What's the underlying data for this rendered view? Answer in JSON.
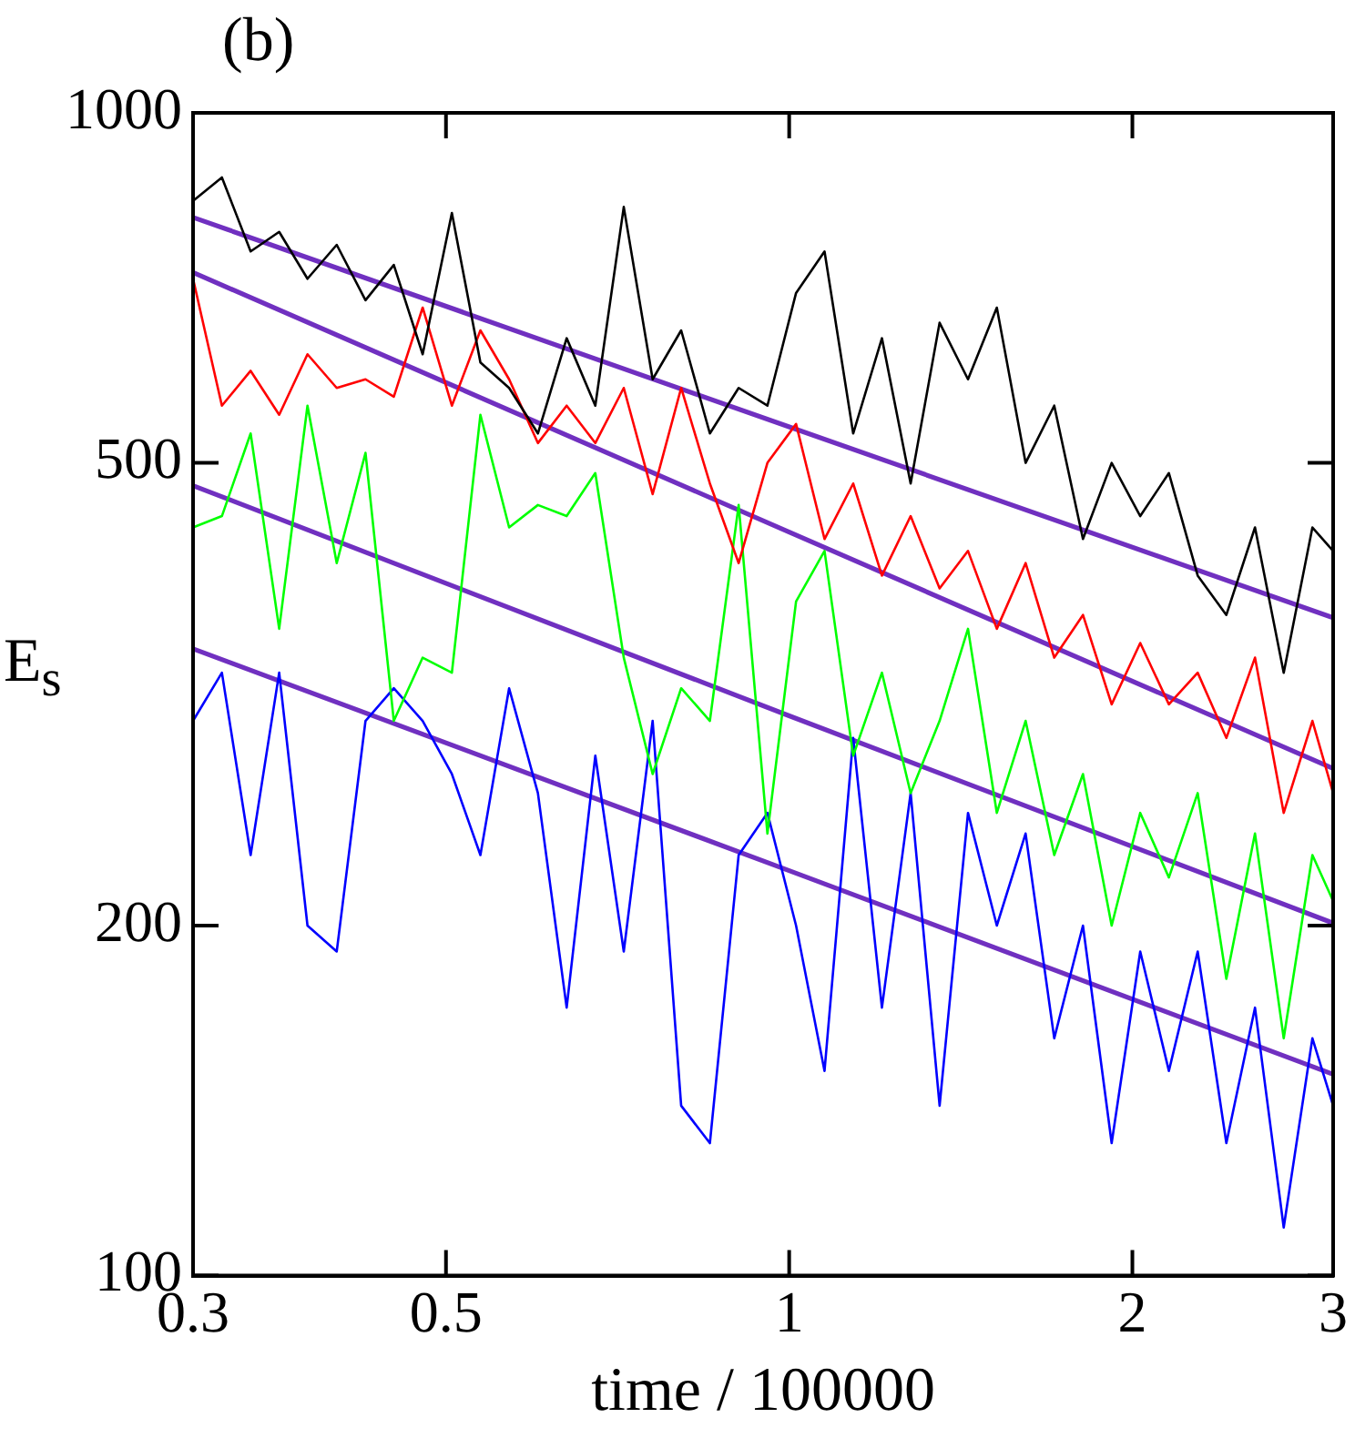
{
  "chart_data": {
    "type": "line",
    "title": "(b)",
    "xlabel": "time / 100000",
    "ylabel": "E$_{s}$",
    "log": "xy",
    "grid": false,
    "legend": false,
    "marker": "none",
    "line_style": "solid",
    "xlim": [
      0.3,
      3
    ],
    "ylim": [
      100,
      1000
    ],
    "xticks": [
      0.3,
      0.5,
      1,
      2,
      3
    ],
    "yticks": [
      100,
      200,
      500,
      1000
    ],
    "x": [
      0.3,
      0.318,
      0.337,
      0.357,
      0.378,
      0.401,
      0.425,
      0.45,
      0.477,
      0.506,
      0.536,
      0.568,
      0.602,
      0.638,
      0.676,
      0.716,
      0.759,
      0.804,
      0.852,
      0.903,
      0.957,
      1.014,
      1.074,
      1.138,
      1.206,
      1.278,
      1.355,
      1.435,
      1.521,
      1.612,
      1.708,
      1.81,
      1.918,
      2.032,
      2.153,
      2.282,
      2.418,
      2.562,
      2.715,
      2.877,
      3.0
    ],
    "series": [
      {
        "color": "#000000",
        "values": [
          840,
          880,
          760,
          790,
          720,
          770,
          690,
          740,
          620,
          820,
          610,
          580,
          530,
          640,
          560,
          830,
          590,
          650,
          530,
          580,
          560,
          700,
          760,
          530,
          640,
          480,
          660,
          590,
          680,
          500,
          560,
          430,
          500,
          450,
          490,
          400,
          370,
          440,
          330,
          440,
          420
        ]
      },
      {
        "color": "#ff0000",
        "values": [
          720,
          560,
          600,
          550,
          620,
          580,
          590,
          570,
          680,
          560,
          650,
          590,
          520,
          560,
          520,
          580,
          470,
          580,
          480,
          410,
          500,
          540,
          430,
          480,
          400,
          450,
          390,
          420,
          360,
          410,
          340,
          370,
          310,
          350,
          310,
          330,
          290,
          340,
          250,
          300,
          260
        ]
      },
      {
        "color": "#00ff00",
        "values": [
          440,
          450,
          530,
          360,
          560,
          410,
          510,
          300,
          340,
          330,
          550,
          440,
          460,
          450,
          490,
          340,
          270,
          320,
          300,
          460,
          240,
          380,
          420,
          280,
          330,
          260,
          300,
          360,
          250,
          300,
          230,
          270,
          200,
          250,
          220,
          260,
          180,
          240,
          160,
          230,
          210
        ]
      },
      {
        "color": "#0000ff",
        "values": [
          300,
          330,
          230,
          330,
          200,
          190,
          300,
          320,
          300,
          270,
          230,
          320,
          260,
          170,
          280,
          190,
          300,
          140,
          130,
          230,
          250,
          200,
          150,
          290,
          170,
          260,
          140,
          250,
          200,
          240,
          160,
          200,
          130,
          190,
          150,
          190,
          130,
          170,
          110,
          160,
          140
        ]
      },
      {
        "type": "line",
        "color": "#7030c0",
        "x": [
          0.3,
          1,
          3
        ],
        "values": [
          813,
          537,
          368
        ]
      },
      {
        "type": "line",
        "color": "#7030c0",
        "x": [
          0.3,
          1,
          3
        ],
        "values": [
          729,
          436,
          273
        ]
      },
      {
        "type": "line",
        "color": "#7030c0",
        "x": [
          0.3,
          1,
          3
        ],
        "values": [
          478,
          303,
          201
        ]
      },
      {
        "type": "line",
        "color": "#7030c0",
        "x": [
          0.3,
          1,
          3
        ],
        "values": [
          346,
          223,
          149
        ]
      }
    ]
  }
}
